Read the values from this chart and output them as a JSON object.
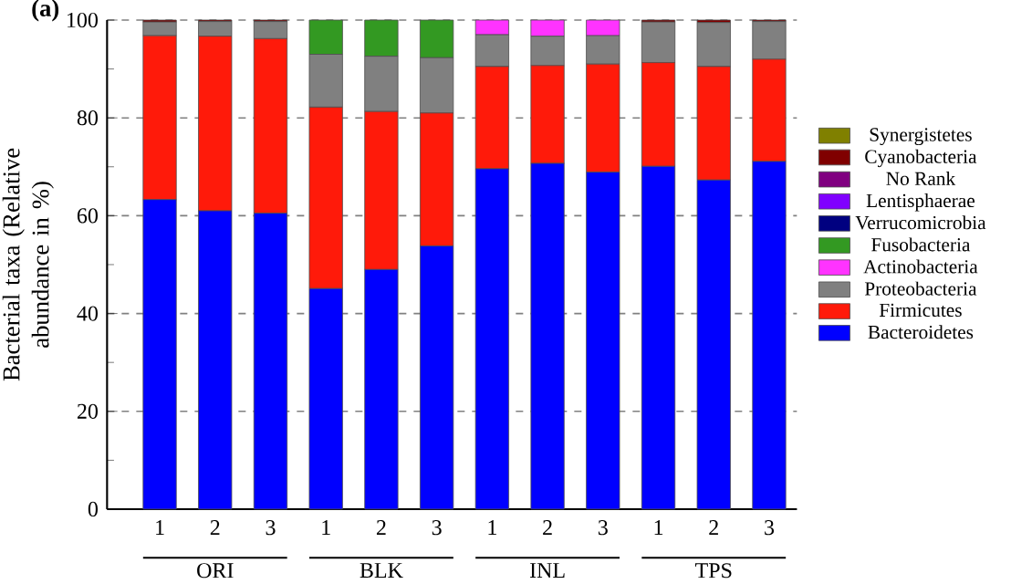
{
  "chart_data": {
    "type": "bar",
    "stacked": true,
    "title": "(a)",
    "ylabel": "Bacterial taxa (Relative abundance in %)",
    "categories": [
      "1",
      "2",
      "3",
      "1",
      "2",
      "3",
      "1",
      "2",
      "3",
      "1",
      "2",
      "3"
    ],
    "annotations": [
      "ORI",
      "BLK",
      "INL",
      "TPS"
    ],
    "ylim": [
      0,
      100
    ],
    "yticks": [
      0,
      20,
      40,
      60,
      80,
      100
    ],
    "grid": "y",
    "legend": "right",
    "series": [
      {
        "name": "Bacteroidetes",
        "color": "#0000ff",
        "values": [
          63.3,
          61.0,
          60.5,
          45.1,
          49.0,
          53.8,
          69.6,
          70.7,
          68.9,
          70.1,
          67.3,
          71.1
        ]
      },
      {
        "name": "Firmicutes",
        "color": "#ff1a0a",
        "values": [
          33.5,
          35.7,
          35.7,
          37.1,
          32.3,
          27.2,
          20.9,
          20.0,
          22.1,
          21.2,
          23.2,
          20.9
        ]
      },
      {
        "name": "Proteobacteria",
        "color": "#808080",
        "values": [
          2.8,
          3.0,
          3.5,
          10.8,
          11.3,
          11.3,
          6.5,
          6.0,
          5.8,
          8.3,
          9.0,
          7.7
        ]
      },
      {
        "name": "Actinobacteria",
        "color": "#ff33ff",
        "values": [
          0,
          0,
          0,
          0,
          0,
          0,
          3.0,
          3.3,
          3.2,
          0,
          0,
          0
        ]
      },
      {
        "name": "Fusobacteria",
        "color": "#339922",
        "values": [
          0,
          0,
          0,
          7.0,
          7.4,
          7.7,
          0,
          0,
          0,
          0,
          0,
          0
        ]
      },
      {
        "name": "Verrucomicrobia",
        "color": "#000080",
        "values": [
          0,
          0,
          0,
          0,
          0,
          0,
          0,
          0,
          0,
          0,
          0,
          0
        ]
      },
      {
        "name": "Lentisphaerae",
        "color": "#8000ff",
        "values": [
          0,
          0,
          0,
          0,
          0,
          0,
          0,
          0,
          0,
          0,
          0,
          0
        ]
      },
      {
        "name": "No Rank",
        "color": "#800080",
        "values": [
          0,
          0,
          0,
          0,
          0,
          0,
          0,
          0,
          0,
          0,
          0,
          0
        ]
      },
      {
        "name": "Cyanobacteria",
        "color": "#800000",
        "values": [
          0.4,
          0.3,
          0.3,
          0,
          0,
          0,
          0,
          0,
          0,
          0.4,
          0.5,
          0.3
        ]
      },
      {
        "name": "Synergistetes",
        "color": "#808000",
        "values": [
          0,
          0,
          0,
          0,
          0,
          0,
          0,
          0,
          0,
          0,
          0,
          0
        ]
      }
    ]
  }
}
